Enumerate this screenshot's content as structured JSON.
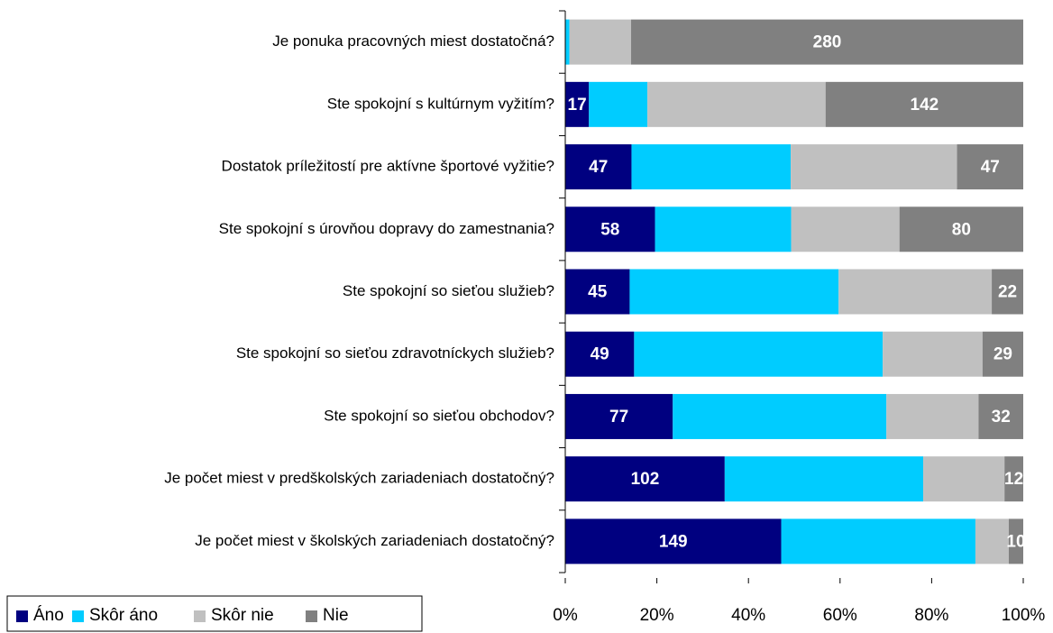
{
  "chart_data": {
    "type": "stacked_bar_percent",
    "orientation": "horizontal",
    "categories": [
      "Je ponuka pracovných miest dostatočná?",
      "Ste spokojní s kultúrnym vyžitím?",
      "Dostatok príležitostí pre aktívne športové vyžitie?",
      "Ste spokojní s úrovňou dopravy do zamestnania?",
      "Ste spokojní so sieťou služieb?",
      "Ste spokojní so sieťou zdravotníckych služieb?",
      "Ste spokojní so sieťou obchodov?",
      "Je počet miest v predškolských zariadeniach dostatočný?",
      "Je počet miest v školských zariadeniach dostatočný?"
    ],
    "series": [
      {
        "name": "Áno",
        "color": "#000080",
        "show_labels": true,
        "values": [
          0,
          17,
          47,
          58,
          45,
          49,
          77,
          102,
          149
        ]
      },
      {
        "name": "Skôr áno",
        "color": "#00ccff",
        "show_labels": false,
        "values": [
          3,
          42,
          113,
          88,
          146,
          177,
          153,
          127,
          134
        ]
      },
      {
        "name": "Skôr nie",
        "color": "#c0c0c0",
        "show_labels": false,
        "values": [
          44,
          128,
          118,
          70,
          107,
          71,
          66,
          52,
          23
        ]
      },
      {
        "name": "Nie",
        "color": "#808080",
        "show_labels": true,
        "values": [
          280,
          142,
          47,
          80,
          22,
          29,
          32,
          12,
          10
        ]
      }
    ],
    "xlim": [
      0,
      100
    ],
    "xticks": [
      {
        "value": 0,
        "label": "0%"
      },
      {
        "value": 20,
        "label": "20%"
      },
      {
        "value": 40,
        "label": "40%"
      },
      {
        "value": 60,
        "label": "60%"
      },
      {
        "value": 80,
        "label": "80%"
      },
      {
        "value": 100,
        "label": "100%"
      }
    ],
    "legend": "bottom-left"
  }
}
